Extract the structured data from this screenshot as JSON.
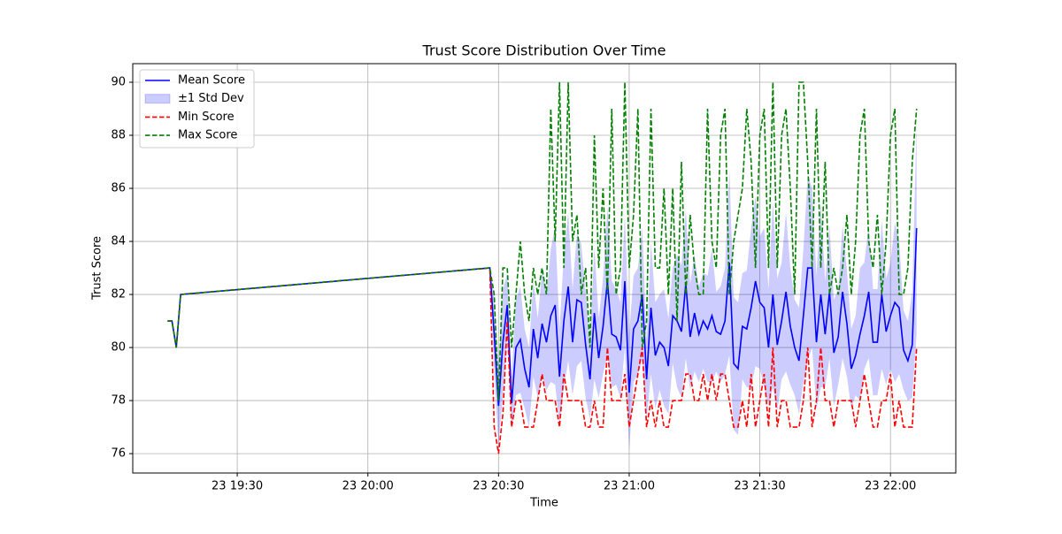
{
  "chart_data": {
    "type": "line",
    "title": "Trust Score Distribution Over Time",
    "x_label": "Time",
    "y_label": "Trust Score",
    "x": [
      "19:14",
      "19:15",
      "19:16",
      "19:17",
      "20:28",
      "20:29",
      "20:30",
      "20:31",
      "20:32",
      "20:33",
      "20:34",
      "20:35",
      "20:36",
      "20:37",
      "20:38",
      "20:39",
      "20:40",
      "20:41",
      "20:42",
      "20:43",
      "20:44",
      "20:45",
      "20:46",
      "20:47",
      "20:48",
      "20:49",
      "20:50",
      "20:51",
      "20:52",
      "20:53",
      "20:54",
      "20:55",
      "20:56",
      "20:57",
      "20:58",
      "20:59",
      "21:00",
      "21:01",
      "21:02",
      "21:03",
      "21:04",
      "21:05",
      "21:06",
      "21:07",
      "21:08",
      "21:09",
      "21:10",
      "21:11",
      "21:12",
      "21:13",
      "21:14",
      "21:15",
      "21:16",
      "21:17",
      "21:18",
      "21:19",
      "21:20",
      "21:21",
      "21:22",
      "21:23",
      "21:24",
      "21:25",
      "21:26",
      "21:27",
      "21:28",
      "21:29",
      "21:30",
      "21:31",
      "21:32",
      "21:33",
      "21:34",
      "21:35",
      "21:36",
      "21:37",
      "21:38",
      "21:39",
      "21:40",
      "21:41",
      "21:42",
      "21:43",
      "21:44",
      "21:45",
      "21:46",
      "21:47",
      "21:48",
      "21:49",
      "21:50",
      "21:51",
      "21:52",
      "21:53",
      "21:54",
      "21:55",
      "21:56",
      "21:57",
      "21:58",
      "21:59",
      "22:00",
      "22:01",
      "22:02",
      "22:03",
      "22:04",
      "22:05",
      "22:06"
    ],
    "series": [
      {
        "name": "Mean Score",
        "color": "#0000ff",
        "style": "solid",
        "values": [
          81,
          81,
          80,
          82,
          83,
          80.5,
          77.8,
          80.2,
          81.6,
          77.9,
          80.0,
          80.3,
          79.2,
          78.5,
          80.7,
          79.6,
          80.9,
          80.2,
          81.2,
          81.6,
          78.9,
          81.0,
          82.3,
          80.2,
          81.8,
          81.7,
          80.1,
          78.8,
          81.3,
          79.6,
          80.8,
          82.5,
          80.5,
          80.4,
          79.9,
          82.5,
          78.3,
          80.7,
          81.0,
          82.0,
          78.8,
          81.5,
          79.7,
          80.2,
          80.0,
          79.3,
          81.2,
          81.0,
          80.6,
          82.4,
          80.4,
          81.3,
          80.5,
          81.0,
          80.7,
          81.2,
          80.6,
          80.5,
          81.0,
          83.2,
          79.4,
          79.2,
          80.8,
          80.7,
          81.5,
          82.5,
          81.7,
          81.5,
          80.0,
          82.0,
          80.1,
          81.0,
          82.1,
          80.8,
          80.0,
          79.5,
          81.2,
          83.0,
          83.0,
          80.2,
          82.0,
          80.5,
          82.1,
          79.8,
          80.4,
          82.1,
          80.9,
          79.2,
          79.7,
          80.5,
          81.2,
          82.1,
          80.2,
          80.2,
          82.0,
          80.6,
          81.2,
          81.7,
          81.5,
          79.9,
          79.5,
          80.1,
          84.5
        ]
      },
      {
        "name": "±1 Std Dev",
        "color": "#0000ff",
        "style": "band",
        "values": [
          0,
          0,
          0,
          0,
          0,
          1.5,
          1.5,
          2.0,
          1.2,
          1.0,
          1.8,
          2.0,
          1.5,
          1.5,
          1.8,
          1.5,
          2.0,
          1.8,
          2.5,
          3.0,
          1.8,
          2.5,
          2.8,
          2.0,
          2.5,
          2.2,
          2.0,
          1.5,
          2.5,
          1.5,
          1.8,
          2.8,
          2.0,
          1.8,
          1.8,
          2.5,
          2.2,
          2.0,
          2.0,
          2.5,
          1.5,
          2.5,
          2.0,
          1.8,
          2.2,
          1.8,
          1.8,
          2.5,
          2.5,
          2.8,
          2.0,
          2.2,
          1.8,
          1.8,
          2.0,
          2.5,
          1.5,
          1.8,
          2.0,
          3.5,
          2.5,
          2.5,
          2.0,
          2.2,
          3.0,
          3.2,
          2.5,
          3.0,
          2.2,
          3.5,
          2.5,
          2.2,
          3.0,
          2.2,
          1.8,
          2.0,
          2.5,
          3.5,
          3.0,
          2.5,
          3.5,
          2.0,
          2.5,
          2.0,
          1.8,
          2.5,
          2.0,
          1.5,
          1.5,
          2.5,
          2.0,
          2.5,
          2.0,
          2.0,
          2.8,
          2.0,
          2.0,
          3.0,
          2.5,
          1.5,
          1.5,
          2.0,
          4.0
        ]
      },
      {
        "name": "Min Score",
        "color": "#ff0000",
        "style": "dashed",
        "values": [
          81,
          81,
          80,
          82,
          83,
          77,
          76,
          77.5,
          81,
          77,
          78,
          78,
          77,
          77,
          77,
          78,
          79,
          78,
          78,
          78,
          77,
          79,
          78,
          78,
          78,
          78,
          77,
          77,
          78,
          77,
          77,
          80,
          78,
          78,
          78,
          79,
          77,
          78,
          79,
          80,
          77,
          78,
          77,
          78,
          77,
          77,
          78,
          78,
          78,
          79,
          79,
          78,
          78,
          79,
          78,
          79,
          78,
          79,
          79,
          78,
          77,
          77,
          78,
          77,
          79,
          77,
          78,
          79,
          77,
          80,
          77,
          78,
          78,
          77,
          77,
          77,
          78,
          80,
          77,
          78,
          80,
          78,
          78,
          77,
          78,
          78,
          78,
          78,
          77,
          78,
          79,
          78,
          77,
          77,
          78,
          78,
          79,
          77,
          78,
          77,
          77,
          77,
          80
        ]
      },
      {
        "name": "Max Score",
        "color": "#008000",
        "style": "dashed",
        "values": [
          81,
          81,
          80,
          82,
          83,
          82,
          78,
          83,
          83,
          80,
          82,
          84,
          82,
          81,
          83,
          82,
          83,
          82,
          89,
          84,
          90,
          83,
          90,
          84,
          85,
          82,
          83,
          80,
          88,
          83,
          86,
          82,
          89,
          82,
          83,
          90,
          83,
          85,
          89,
          80,
          81,
          89,
          83,
          83,
          86,
          82,
          86,
          81,
          87,
          82,
          85,
          83,
          82,
          82,
          89,
          84,
          83,
          88,
          89,
          82,
          84,
          85,
          86,
          89,
          87,
          83,
          88,
          89,
          83,
          90,
          83,
          88,
          89,
          86,
          82,
          90,
          90,
          87,
          83,
          89,
          83,
          87,
          82,
          83,
          82,
          83,
          85,
          82,
          84,
          88,
          89,
          84,
          83,
          85,
          82,
          84,
          88,
          89,
          82,
          82,
          83,
          87,
          89
        ]
      }
    ],
    "xlim": [
      "19:06",
      "22:15"
    ],
    "xticks": [
      {
        "value": "19:30",
        "label": "23 19:30"
      },
      {
        "value": "20:00",
        "label": "23 20:00"
      },
      {
        "value": "20:30",
        "label": "23 20:30"
      },
      {
        "value": "21:00",
        "label": "23 21:00"
      },
      {
        "value": "21:30",
        "label": "23 21:30"
      },
      {
        "value": "22:00",
        "label": "23 22:00"
      }
    ],
    "ylim": [
      75.27,
      90.7
    ],
    "yticks": [
      76,
      78,
      80,
      82,
      84,
      86,
      88,
      90
    ],
    "grid": true,
    "legend": "upper-left"
  }
}
